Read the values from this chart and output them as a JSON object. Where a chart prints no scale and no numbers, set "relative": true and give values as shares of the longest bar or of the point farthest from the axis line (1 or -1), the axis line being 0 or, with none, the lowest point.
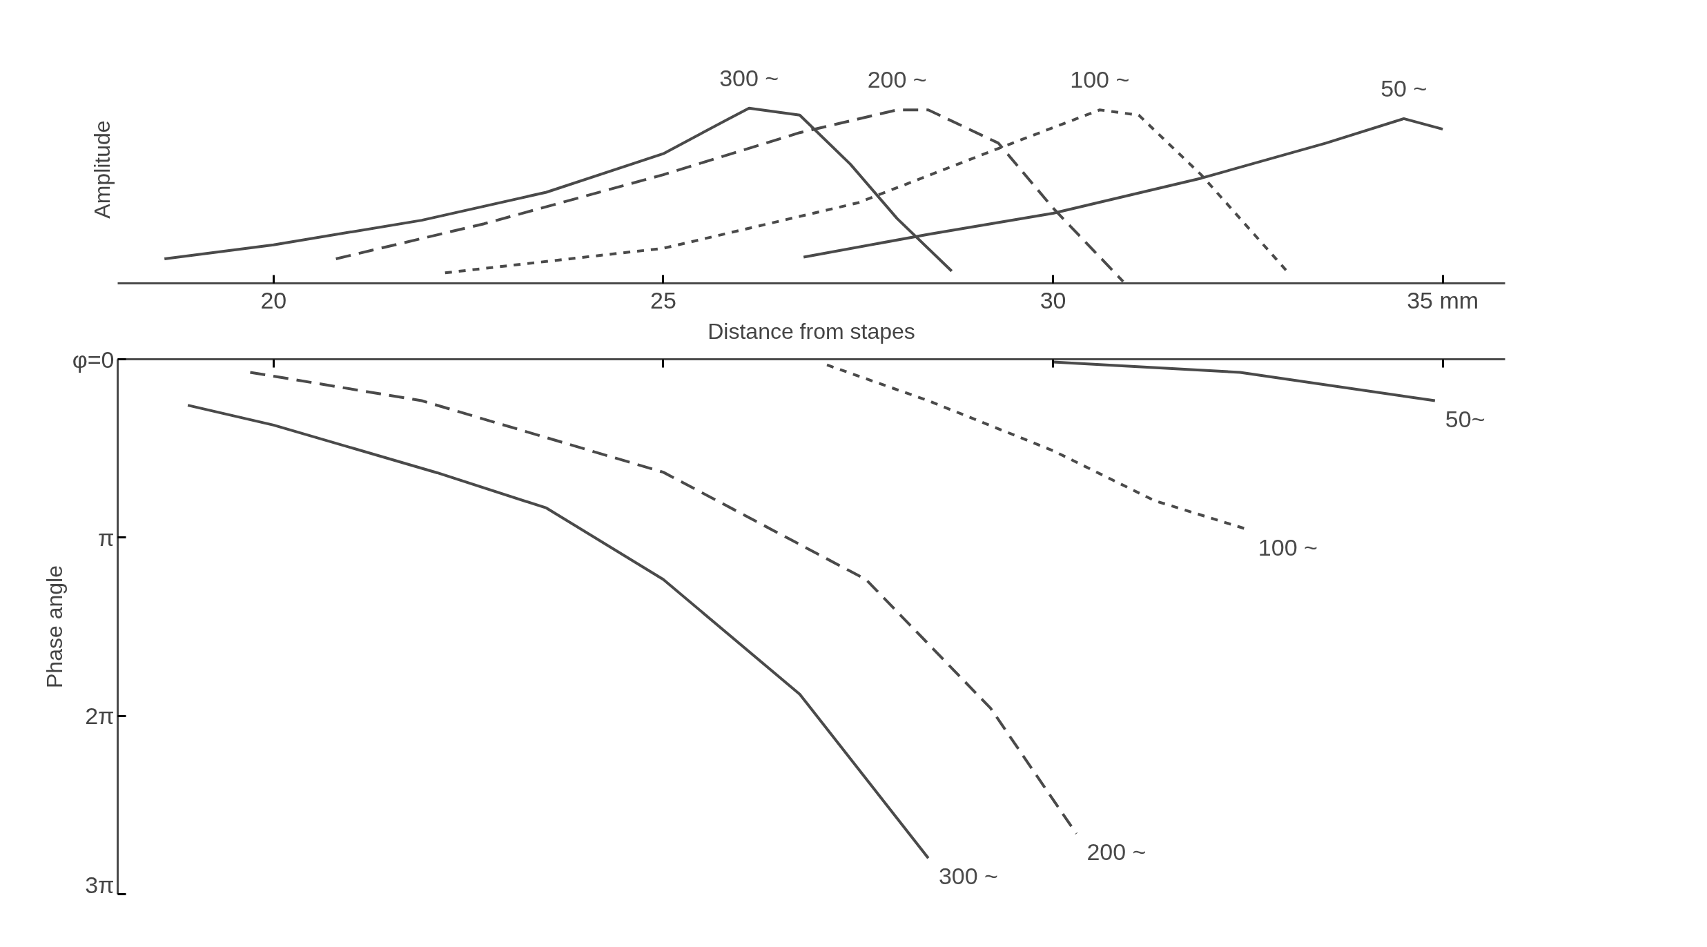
{
  "chart_data": [
    {
      "type": "line",
      "relative": true,
      "xlabel": "Distance from stapes",
      "ylabel": "Amplitude",
      "xlim": [
        18,
        35.8
      ],
      "xticks": [
        20,
        25,
        30,
        {
          "value": 35,
          "label": "35 mm"
        }
      ],
      "tick_labels": "x",
      "grid": false,
      "series": [
        {
          "name": "300 ~",
          "color": "#4a4a4a",
          "line_style": "solid",
          "x": [
            18.6,
            20,
            21.9,
            23.5,
            25,
            25.8,
            26.1,
            26.75,
            27.4,
            28.0,
            28.7
          ],
          "values": [
            0.14,
            0.22,
            0.36,
            0.52,
            0.74,
            0.93,
            1.0,
            0.96,
            0.68,
            0.37,
            0.07
          ]
        },
        {
          "name": "200 ~",
          "color": "#4a4a4a",
          "line_style": "dashed",
          "x": [
            20.8,
            22.7,
            25,
            26.75,
            28.0,
            28.4,
            29.3,
            30,
            30.9
          ],
          "values": [
            0.14,
            0.34,
            0.62,
            0.86,
            0.99,
            0.99,
            0.8,
            0.43,
            0.01
          ]
        },
        {
          "name": "100 ~",
          "color": "#4a4a4a",
          "line_style": "dotted",
          "x": [
            22.2,
            25,
            27.5,
            29.3,
            30.6,
            31.1,
            31.9,
            33.0
          ],
          "values": [
            0.06,
            0.2,
            0.46,
            0.77,
            0.99,
            0.96,
            0.62,
            0.07
          ]
        },
        {
          "name": "50 ~",
          "color": "#4a4a4a",
          "line_style": "solid",
          "x": [
            26.8,
            28.4,
            30,
            31.9,
            33.5,
            34.5,
            35.0
          ],
          "values": [
            0.15,
            0.28,
            0.4,
            0.6,
            0.8,
            0.94,
            0.88
          ]
        }
      ]
    },
    {
      "type": "line",
      "ylabel": "Phase angle",
      "xlim": [
        18,
        35.8
      ],
      "xticks": [
        20,
        25,
        30,
        35
      ],
      "ylim": [
        9.4248,
        0
      ],
      "yticks": [
        {
          "value": 0,
          "label": "φ=0"
        },
        {
          "value": 3.1416,
          "label": "π"
        },
        {
          "value": 6.2832,
          "label": "2π"
        },
        {
          "value": 9.4248,
          "label": "3π"
        }
      ],
      "tick_labels": "y",
      "grid": false,
      "series": [
        {
          "name": "300 ~",
          "color": "#4a4a4a",
          "line_style": "solid",
          "x": [
            18.9,
            20,
            22.1,
            23.5,
            25,
            26.75,
            28.4
          ],
          "values": [
            0.81,
            1.16,
            2.0,
            2.62,
            3.88,
            5.9,
            8.79
          ]
        },
        {
          "name": "200 ~",
          "color": "#4a4a4a",
          "line_style": "dashed",
          "x": [
            19.7,
            21.9,
            25,
            27.6,
            29.2,
            30.3
          ],
          "values": [
            0.23,
            0.73,
            1.99,
            3.88,
            6.15,
            8.36
          ]
        },
        {
          "name": "100 ~",
          "color": "#4a4a4a",
          "line_style": "dotted",
          "x": [
            27.1,
            28.4,
            30,
            31.3,
            32.5
          ],
          "values": [
            0.1,
            0.73,
            1.61,
            2.49,
            3.0
          ]
        },
        {
          "name": "50~",
          "color": "#4a4a4a",
          "line_style": "solid",
          "x": [
            30,
            32.4,
            34.9
          ],
          "values": [
            0.05,
            0.23,
            0.73
          ]
        }
      ]
    }
  ]
}
